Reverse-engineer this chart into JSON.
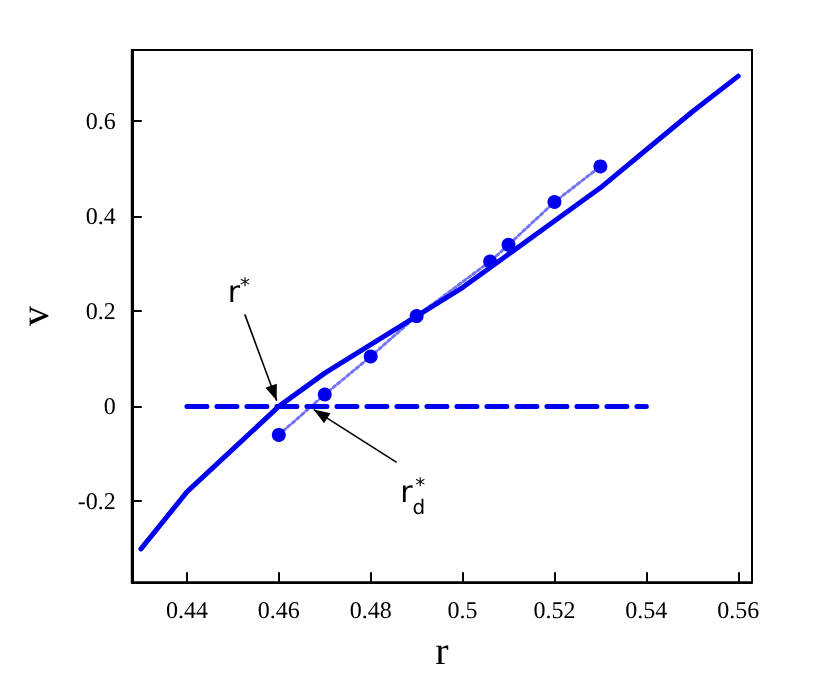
{
  "chart_data": {
    "type": "line",
    "xlabel": "r",
    "ylabel": "v",
    "xlim": [
      0.428,
      0.563
    ],
    "ylim": [
      -0.37,
      0.75
    ],
    "xticks": [
      0.44,
      0.46,
      0.48,
      0.5,
      0.52,
      0.54,
      0.56
    ],
    "yticks": [
      -0.2,
      0,
      0.2,
      0.4,
      0.6
    ],
    "grid": false,
    "series": [
      {
        "color": "#0000ee",
        "line_style": "solid",
        "marker": "none",
        "x": [
          0.43,
          0.44,
          0.45,
          0.46,
          0.47,
          0.48,
          0.49,
          0.5,
          0.51,
          0.52,
          0.53,
          0.54,
          0.55,
          0.56
        ],
        "values": [
          -0.3,
          -0.18,
          -0.09,
          0,
          0.07,
          0.13,
          0.19,
          0.25,
          0.32,
          0.39,
          0.46,
          0.54,
          0.62,
          0.695
        ]
      },
      {
        "color": "#0000ee",
        "line_style": "dotted",
        "marker": "circle",
        "x": [
          0.46,
          0.47,
          0.48,
          0.49,
          0.506,
          0.51,
          0.52,
          0.53
        ],
        "values": [
          -0.06,
          0.025,
          0.105,
          0.19,
          0.305,
          0.34,
          0.43,
          0.505
        ]
      },
      {
        "color": "#0000ee",
        "line_style": "dashed",
        "marker": "none",
        "x": [
          0.44,
          0.54
        ],
        "values": [
          0,
          0
        ]
      }
    ],
    "annotations": [
      {
        "text": "r$^{*}$",
        "x": 0.46,
        "y": 0
      },
      {
        "text": "r$_{d}$$^{*}$",
        "x": 0.4665,
        "y": 0
      }
    ]
  }
}
